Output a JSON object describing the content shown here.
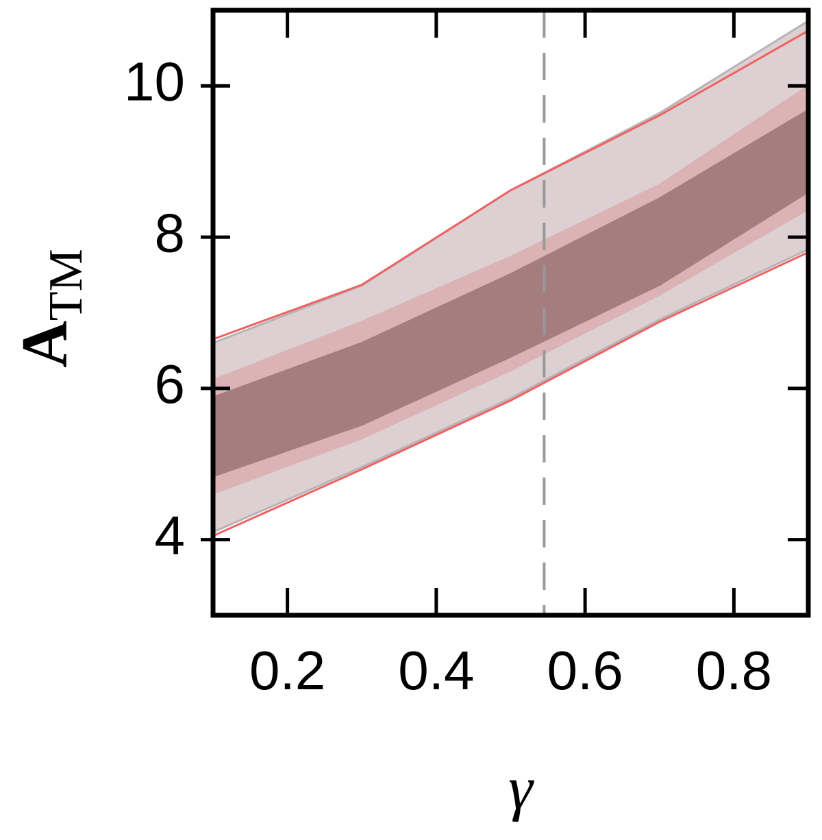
{
  "chart_data": {
    "type": "band",
    "xlabel": "γ",
    "ylabel": "A",
    "ylabel_subscript": "TM",
    "x": [
      0.1,
      0.3,
      0.5,
      0.7,
      0.9
    ],
    "series": [
      {
        "color": "#b8b3b5",
        "fill": "#ddd0d3",
        "lower": [
          4.1,
          4.96,
          5.87,
          6.91,
          7.84
        ],
        "upper": [
          6.6,
          7.36,
          8.62,
          9.64,
          10.86
        ]
      },
      {
        "color": "#f06262",
        "fill": "none",
        "lower": [
          4.05,
          4.93,
          5.84,
          6.88,
          7.8
        ],
        "upper": [
          6.65,
          7.37,
          8.62,
          9.61,
          10.73
        ]
      },
      {
        "color": "#dcb3b5",
        "fill": "#dcb3b5",
        "lower": [
          4.61,
          5.34,
          6.24,
          7.24,
          8.37
        ],
        "upper": [
          6.11,
          6.88,
          7.74,
          8.69,
          10.0
        ]
      },
      {
        "color": "#a47e7e",
        "fill": "#a47e7e",
        "lower": [
          4.84,
          5.52,
          6.42,
          7.37,
          8.6
        ],
        "upper": [
          5.88,
          6.6,
          7.51,
          8.51,
          9.68
        ]
      }
    ],
    "vline": 0.545,
    "vline_color": "#999999",
    "xlim": [
      0.1,
      0.9
    ],
    "ylim": [
      3,
      11
    ],
    "xticks": [
      0.2,
      0.4,
      0.6,
      0.8
    ],
    "yticks": [
      4,
      6,
      8,
      10
    ]
  }
}
